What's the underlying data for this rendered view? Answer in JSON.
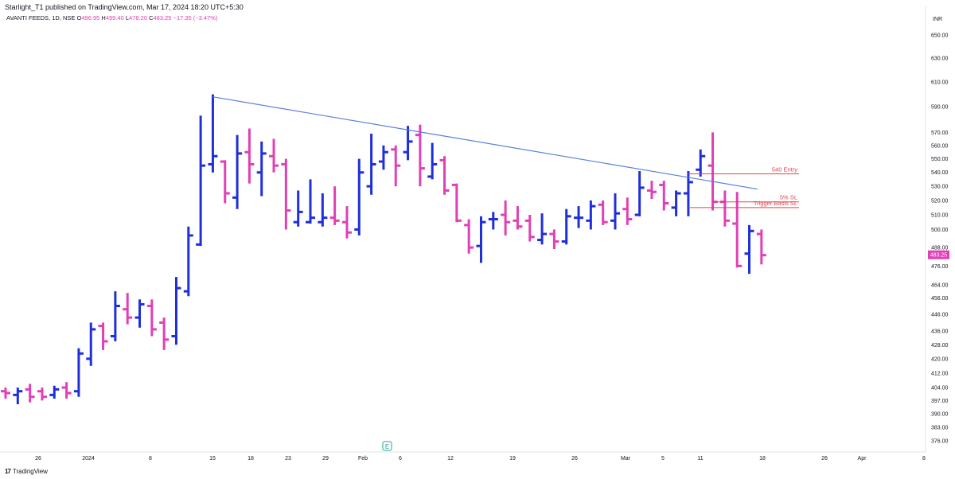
{
  "header": {
    "published": "Starlight_T1 published on TradingView.com, Mar 17, 2024 18:20 UTC+5:30"
  },
  "legend": {
    "symbol": "AVANTI FEEDS, 1D, NSE",
    "o_label": "O",
    "o": "496.95",
    "h_label": "H",
    "h": "499.40",
    "l_label": "L",
    "l": "478.20",
    "c_label": "C",
    "c": "483.25",
    "change": "−17.35 (−3.47%)"
  },
  "footer": {
    "logo": "17",
    "brand": "TradingView"
  },
  "colors": {
    "up": "#1f2fd9",
    "down": "#e040b5",
    "trendline": "#5b7fdb",
    "level": "#e0434b",
    "price_badge": "#e040b5"
  },
  "chart_data": {
    "type": "ohlc",
    "currency": "INR",
    "y_scale": "log",
    "y_ticks": [
      "650.00",
      "630.00",
      "610.00",
      "590.00",
      "570.00",
      "560.00",
      "550.00",
      "540.00",
      "530.00",
      "520.00",
      "510.00",
      "500.00",
      "488.00",
      "476.00",
      "464.00",
      "456.00",
      "446.00",
      "436.00",
      "428.00",
      "420.00",
      "412.00",
      "404.00",
      "397.00",
      "390.00",
      "383.00",
      "376.00"
    ],
    "x_ticks": [
      "26",
      "2024",
      "8",
      "15",
      "18",
      "23",
      "29",
      "Feb",
      "6",
      "12",
      "19",
      "26",
      "Mar",
      "5",
      "11",
      "18",
      "26",
      "Apr",
      "8"
    ],
    "last_price": "483.25",
    "bars": [
      {
        "o": 402,
        "h": 404,
        "l": 398,
        "c": 401
      },
      {
        "o": 400,
        "h": 404,
        "l": 395,
        "c": 402
      },
      {
        "o": 403,
        "h": 406,
        "l": 396,
        "c": 399
      },
      {
        "o": 402,
        "h": 404,
        "l": 397,
        "c": 399
      },
      {
        "o": 400,
        "h": 405,
        "l": 398,
        "c": 403
      },
      {
        "o": 404,
        "h": 407,
        "l": 398,
        "c": 401
      },
      {
        "o": 402,
        "h": 426,
        "l": 399,
        "c": 423
      },
      {
        "o": 420,
        "h": 441,
        "l": 416,
        "c": 437
      },
      {
        "o": 439,
        "h": 441,
        "l": 425,
        "c": 430
      },
      {
        "o": 433,
        "h": 460,
        "l": 430,
        "c": 451
      },
      {
        "o": 449,
        "h": 459,
        "l": 440,
        "c": 444
      },
      {
        "o": 444,
        "h": 455,
        "l": 438,
        "c": 452
      },
      {
        "o": 451,
        "h": 455,
        "l": 433,
        "c": 437
      },
      {
        "o": 441,
        "h": 444,
        "l": 425,
        "c": 431
      },
      {
        "o": 433,
        "h": 469,
        "l": 428,
        "c": 462
      },
      {
        "o": 460,
        "h": 502,
        "l": 457,
        "c": 496
      },
      {
        "o": 490,
        "h": 583,
        "l": 489,
        "c": 545
      },
      {
        "o": 546,
        "h": 600,
        "l": 540,
        "c": 552
      },
      {
        "o": 548,
        "h": 549,
        "l": 518,
        "c": 525
      },
      {
        "o": 522,
        "h": 568,
        "l": 514,
        "c": 554
      },
      {
        "o": 555,
        "h": 573,
        "l": 532,
        "c": 546
      },
      {
        "o": 540,
        "h": 563,
        "l": 523,
        "c": 554
      },
      {
        "o": 552,
        "h": 565,
        "l": 540,
        "c": 545
      },
      {
        "o": 546,
        "h": 550,
        "l": 500,
        "c": 513
      },
      {
        "o": 505,
        "h": 527,
        "l": 502,
        "c": 512
      },
      {
        "o": 505,
        "h": 535,
        "l": 504,
        "c": 508
      },
      {
        "o": 505,
        "h": 525,
        "l": 502,
        "c": 508
      },
      {
        "o": 508,
        "h": 530,
        "l": 503,
        "c": 506
      },
      {
        "o": 505,
        "h": 516,
        "l": 494,
        "c": 498
      },
      {
        "o": 500,
        "h": 550,
        "l": 496,
        "c": 540
      },
      {
        "o": 530,
        "h": 569,
        "l": 524,
        "c": 546
      },
      {
        "o": 548,
        "h": 560,
        "l": 542,
        "c": 555
      },
      {
        "o": 557,
        "h": 560,
        "l": 530,
        "c": 545
      },
      {
        "o": 555,
        "h": 575,
        "l": 549,
        "c": 563
      },
      {
        "o": 568,
        "h": 576,
        "l": 530,
        "c": 543
      },
      {
        "o": 537,
        "h": 562,
        "l": 535,
        "c": 546
      },
      {
        "o": 549,
        "h": 552,
        "l": 524,
        "c": 527
      },
      {
        "o": 531,
        "h": 532,
        "l": 505,
        "c": 506
      },
      {
        "o": 503,
        "h": 507,
        "l": 484,
        "c": 488
      },
      {
        "o": 489,
        "h": 509,
        "l": 478,
        "c": 505
      },
      {
        "o": 507,
        "h": 512,
        "l": 500,
        "c": 507
      },
      {
        "o": 510,
        "h": 520,
        "l": 496,
        "c": 505
      },
      {
        "o": 506,
        "h": 516,
        "l": 500,
        "c": 502
      },
      {
        "o": 506,
        "h": 510,
        "l": 492,
        "c": 495
      },
      {
        "o": 493,
        "h": 511,
        "l": 490,
        "c": 497
      },
      {
        "o": 497,
        "h": 500,
        "l": 487,
        "c": 492
      },
      {
        "o": 492,
        "h": 514,
        "l": 490,
        "c": 509
      },
      {
        "o": 508,
        "h": 516,
        "l": 501,
        "c": 508
      },
      {
        "o": 506,
        "h": 520,
        "l": 500,
        "c": 516
      },
      {
        "o": 517,
        "h": 520,
        "l": 503,
        "c": 505
      },
      {
        "o": 506,
        "h": 525,
        "l": 500,
        "c": 511
      },
      {
        "o": 514,
        "h": 522,
        "l": 503,
        "c": 507
      },
      {
        "o": 510,
        "h": 541,
        "l": 509,
        "c": 529
      },
      {
        "o": 527,
        "h": 534,
        "l": 521,
        "c": 526
      },
      {
        "o": 531,
        "h": 534,
        "l": 513,
        "c": 518
      },
      {
        "o": 515,
        "h": 527,
        "l": 509,
        "c": 525
      },
      {
        "o": 525,
        "h": 541,
        "l": 509,
        "c": 533
      },
      {
        "o": 542,
        "h": 557,
        "l": 537,
        "c": 552
      },
      {
        "o": 545,
        "h": 570,
        "l": 513,
        "c": 519
      },
      {
        "o": 519,
        "h": 527,
        "l": 502,
        "c": 506
      },
      {
        "o": 504,
        "h": 526,
        "l": 475,
        "c": 476
      },
      {
        "o": 484,
        "h": 503,
        "l": 471,
        "c": 499
      },
      {
        "o": 497,
        "h": 500,
        "l": 477,
        "c": 483
      }
    ],
    "trendline": {
      "from": {
        "bar": 17,
        "price": 598
      },
      "to": {
        "bar": 62,
        "price": 528
      }
    },
    "levels": [
      {
        "label": "540 Entry",
        "price": 539,
        "from_bar": 56
      },
      {
        "label": "5% SL",
        "price": 519,
        "from_bar": 58
      },
      {
        "label": "Trigger Basis SL",
        "price": 515,
        "from_bar": 56
      }
    ]
  }
}
